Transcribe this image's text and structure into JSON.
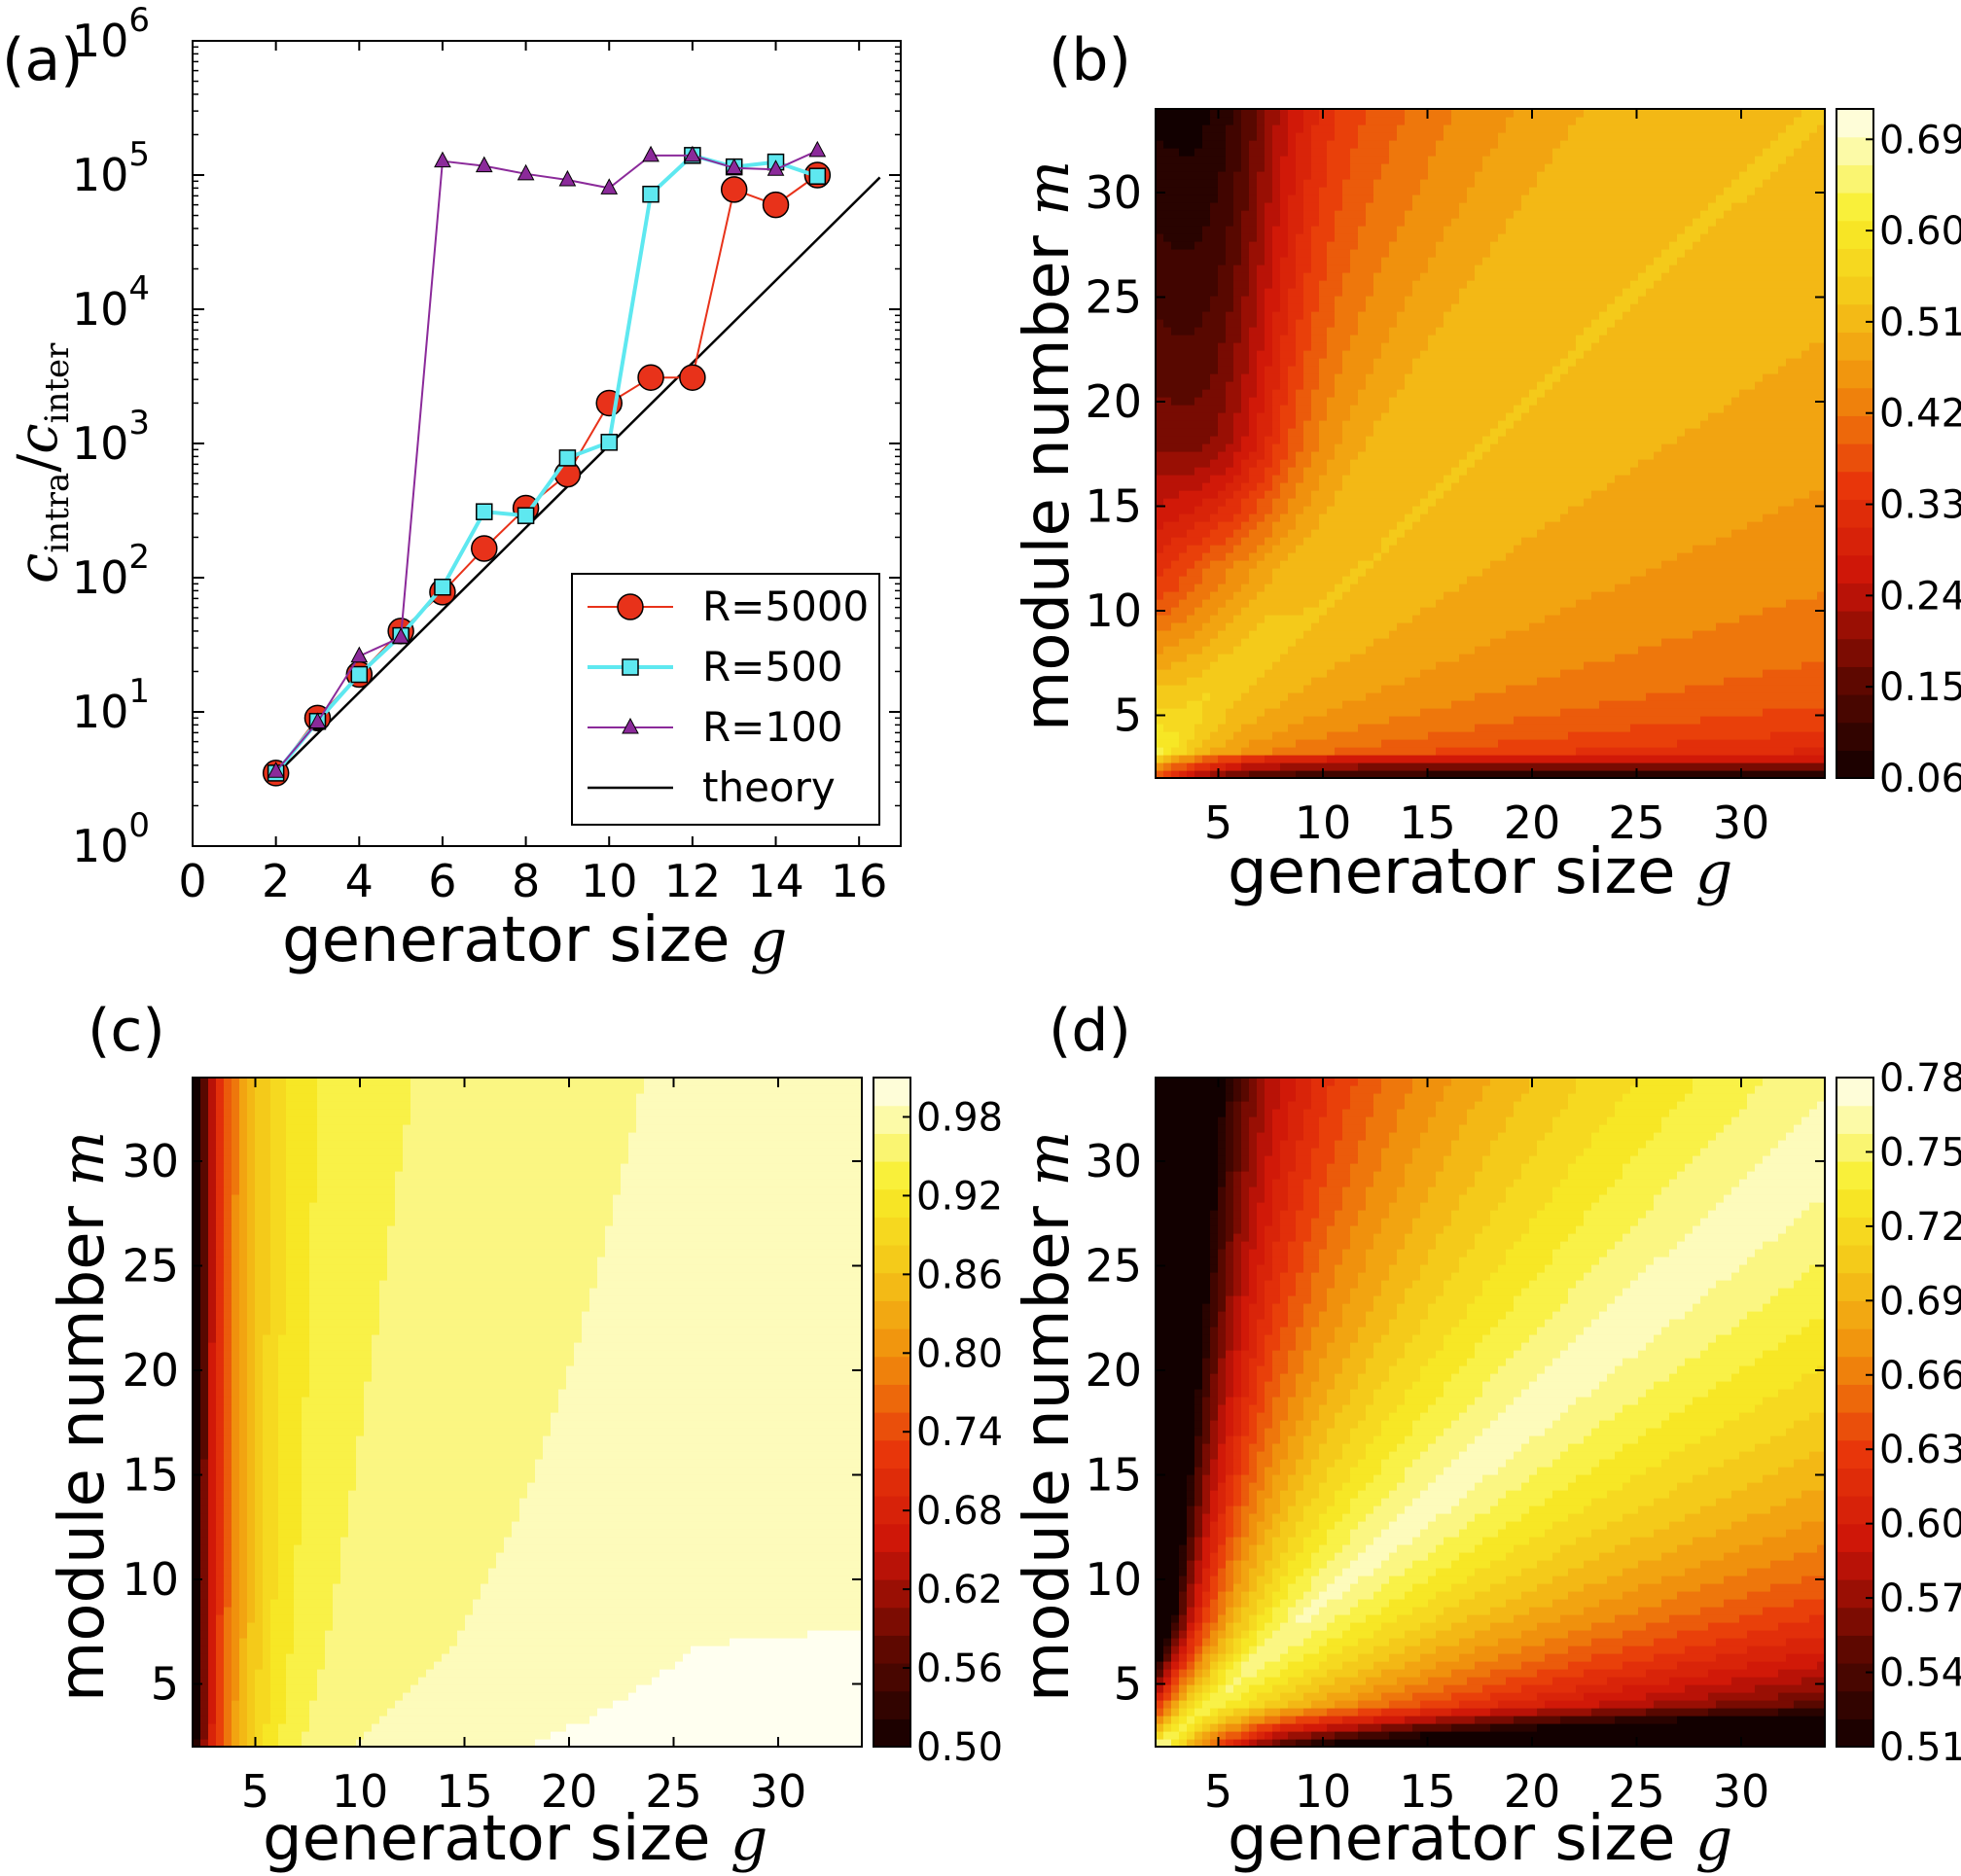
{
  "chart_data": [
    {
      "panel": "(a)",
      "type": "line",
      "xlabel": "generator  size",
      "xsymbol": "g",
      "ylabel": {
        "base": "c",
        "num_sub": "intra",
        "den_sub": "inter"
      },
      "xlim": [
        0,
        17
      ],
      "ylim": [
        1,
        1000000
      ],
      "yscale": "log",
      "xticks": [
        0,
        2,
        4,
        6,
        8,
        10,
        12,
        14,
        16
      ],
      "yticks": [
        {
          "base": "10",
          "exp": "0"
        },
        {
          "base": "10",
          "exp": "1"
        },
        {
          "base": "10",
          "exp": "2"
        },
        {
          "base": "10",
          "exp": "3"
        },
        {
          "base": "10",
          "exp": "4"
        },
        {
          "base": "10",
          "exp": "5"
        },
        {
          "base": "10",
          "exp": "6"
        }
      ],
      "legend_position": "lower-right",
      "series": [
        {
          "name": "R=5000",
          "color": "#e8321a",
          "marker": "circle",
          "x": [
            2,
            3,
            4,
            5,
            6,
            7,
            8,
            9,
            10,
            11,
            12,
            13,
            14,
            15
          ],
          "y": [
            3.5,
            9,
            19,
            40,
            78,
            165,
            330,
            590,
            2000,
            3100,
            3100,
            78000,
            60000,
            100000
          ]
        },
        {
          "name": "R=500",
          "color": "#5ee8f0",
          "marker": "square",
          "x": [
            2,
            3,
            4,
            5,
            6,
            7,
            8,
            9,
            10,
            11,
            12,
            13,
            14,
            15
          ],
          "y": [
            3.5,
            8.5,
            19,
            37,
            85,
            310,
            290,
            780,
            1020,
            72000,
            140000,
            115000,
            125000,
            98000
          ]
        },
        {
          "name": "R=100",
          "color": "#8b2a9a",
          "marker": "triangle",
          "x": [
            2,
            3,
            4,
            5,
            6,
            7,
            8,
            9,
            10,
            11,
            12,
            13,
            14,
            15
          ],
          "y": [
            3.6,
            8.4,
            26,
            36,
            127000,
            117000,
            102000,
            92000,
            80000,
            140000,
            140000,
            113000,
            110000,
            152000
          ]
        },
        {
          "name": "theory",
          "color": "#000000",
          "marker": "none",
          "x": [
            2,
            16.5
          ],
          "y": [
            3.4,
            96000
          ]
        }
      ]
    },
    {
      "panel": "(b)",
      "type": "heatmap",
      "xlabel": "generator  size",
      "xsymbol": "g",
      "ylabel": "module number",
      "ysymbol": "m",
      "xlim": [
        2,
        34
      ],
      "ylim": [
        2,
        34
      ],
      "xticks": [
        5,
        10,
        15,
        20,
        25,
        30
      ],
      "yticks": [
        5,
        10,
        15,
        20,
        25,
        30
      ],
      "colorbar": {
        "ticks": [
          "0.06",
          "0.15",
          "0.24",
          "0.33",
          "0.42",
          "0.51",
          "0.60",
          "0.69"
        ],
        "min": 0.06,
        "max": 0.72
      }
    },
    {
      "panel": "(c)",
      "type": "heatmap",
      "xlabel": "generator  size",
      "xsymbol": "g",
      "ylabel": "module number",
      "ysymbol": "m",
      "xlim": [
        2,
        34
      ],
      "ylim": [
        2,
        34
      ],
      "xticks": [
        5,
        10,
        15,
        20,
        25,
        30
      ],
      "yticks": [
        5,
        10,
        15,
        20,
        25,
        30
      ],
      "colorbar": {
        "ticks": [
          "0.50",
          "0.56",
          "0.62",
          "0.68",
          "0.74",
          "0.80",
          "0.86",
          "0.92",
          "0.98"
        ],
        "min": 0.5,
        "max": 1.01
      }
    },
    {
      "panel": "(d)",
      "type": "heatmap",
      "xlabel": "generator  size",
      "xsymbol": "g",
      "ylabel": "module number",
      "ysymbol": "m",
      "xlim": [
        2,
        34
      ],
      "ylim": [
        2,
        34
      ],
      "xticks": [
        5,
        10,
        15,
        20,
        25,
        30
      ],
      "yticks": [
        5,
        10,
        15,
        20,
        25,
        30
      ],
      "colorbar": {
        "ticks": [
          "0.51",
          "0.54",
          "0.57",
          "0.60",
          "0.63",
          "0.66",
          "0.69",
          "0.72",
          "0.75",
          "0.78"
        ],
        "min": 0.51,
        "max": 0.78
      }
    }
  ]
}
